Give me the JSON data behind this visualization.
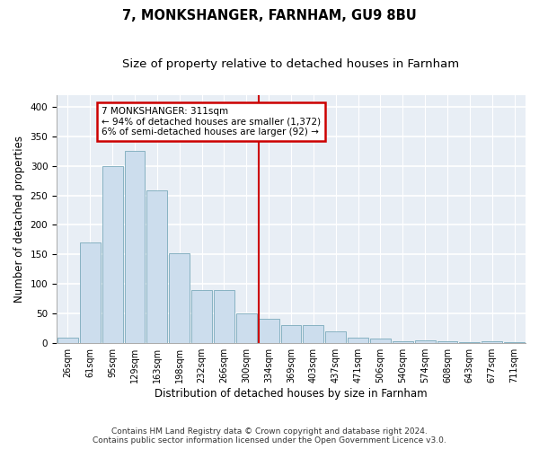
{
  "title": "7, MONKSHANGER, FARNHAM, GU9 8BU",
  "subtitle": "Size of property relative to detached houses in Farnham",
  "xlabel": "Distribution of detached houses by size in Farnham",
  "ylabel": "Number of detached properties",
  "bin_labels": [
    "26sqm",
    "61sqm",
    "95sqm",
    "129sqm",
    "163sqm",
    "198sqm",
    "232sqm",
    "266sqm",
    "300sqm",
    "334sqm",
    "369sqm",
    "403sqm",
    "437sqm",
    "471sqm",
    "506sqm",
    "540sqm",
    "574sqm",
    "608sqm",
    "643sqm",
    "677sqm",
    "711sqm"
  ],
  "bar_values": [
    10,
    170,
    300,
    325,
    258,
    152,
    90,
    90,
    50,
    42,
    30,
    30,
    20,
    10,
    8,
    4,
    5,
    3,
    2,
    3,
    2
  ],
  "bar_color": "#ccdded",
  "bar_edge_color": "#7aaabb",
  "property_line_bin_index": 8.55,
  "annotation_text": "7 MONKSHANGER: 311sqm\n← 94% of detached houses are smaller (1,372)\n6% of semi-detached houses are larger (92) →",
  "annotation_box_color": "#cc0000",
  "vline_color": "#cc0000",
  "background_color": "#e8eef5",
  "grid_color": "#ffffff",
  "footer_text": "Contains HM Land Registry data © Crown copyright and database right 2024.\nContains public sector information licensed under the Open Government Licence v3.0.",
  "ylim": [
    0,
    420
  ],
  "title_fontsize": 10.5,
  "subtitle_fontsize": 9.5,
  "axis_label_fontsize": 8.5,
  "tick_fontsize": 7.0
}
